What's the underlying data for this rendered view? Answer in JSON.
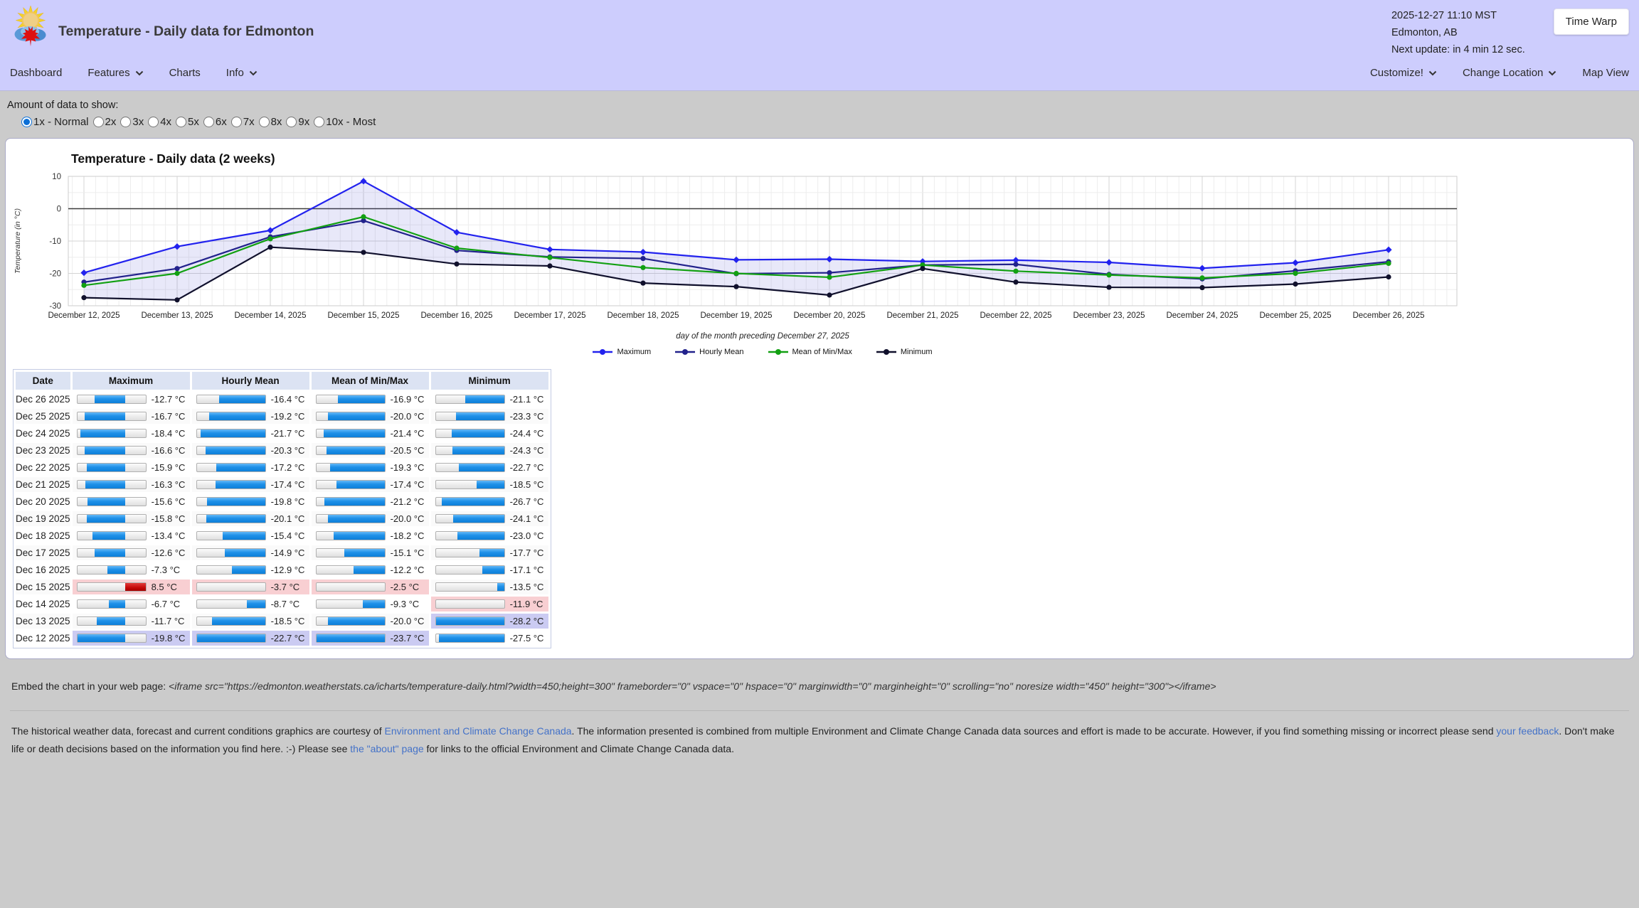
{
  "header": {
    "title": "Temperature - Daily data for Edmonton",
    "datetime": "2025-12-27 11:10 MST",
    "location": "Edmonton, AB",
    "next_update": "Next update: in 4 min 12 sec.",
    "time_warp_label": "Time Warp"
  },
  "nav": {
    "left": [
      {
        "label": "Dashboard",
        "dropdown": false
      },
      {
        "label": "Features",
        "dropdown": true
      },
      {
        "label": "Charts",
        "dropdown": false
      },
      {
        "label": "Info",
        "dropdown": true
      }
    ],
    "right": [
      {
        "label": "Customize!",
        "dropdown": true
      },
      {
        "label": "Change Location",
        "dropdown": true
      },
      {
        "label": "Map View",
        "dropdown": false
      }
    ]
  },
  "data_amount": {
    "label": "Amount of data to show:",
    "options": [
      {
        "label": "1x - Normal",
        "selected": true
      },
      {
        "label": "2x",
        "selected": false
      },
      {
        "label": "3x",
        "selected": false
      },
      {
        "label": "4x",
        "selected": false
      },
      {
        "label": "5x",
        "selected": false
      },
      {
        "label": "6x",
        "selected": false
      },
      {
        "label": "7x",
        "selected": false
      },
      {
        "label": "8x",
        "selected": false
      },
      {
        "label": "9x",
        "selected": false
      },
      {
        "label": "10x - Most",
        "selected": false
      }
    ]
  },
  "chart_data": {
    "type": "line",
    "title": "Temperature - Daily data (2 weeks)",
    "ylabel": "Temperature (in °C)",
    "xlabel": "day of the month preceding December 27, 2025",
    "ylim": [
      -30,
      10
    ],
    "yticks": [
      10,
      0,
      -10,
      -20,
      -30
    ],
    "grid": true,
    "legend_position": "bottom",
    "categories": [
      "December 12, 2025",
      "December 13, 2025",
      "December 14, 2025",
      "December 15, 2025",
      "December 16, 2025",
      "December 17, 2025",
      "December 18, 2025",
      "December 19, 2025",
      "December 20, 2025",
      "December 21, 2025",
      "December 22, 2025",
      "December 23, 2025",
      "December 24, 2025",
      "December 25, 2025",
      "December 26, 2025"
    ],
    "series": [
      {
        "name": "Maximum",
        "color": "#2222ee",
        "values": [
          -19.8,
          -11.7,
          -6.7,
          8.5,
          -7.3,
          -12.6,
          -13.4,
          -15.8,
          -15.6,
          -16.3,
          -15.9,
          -16.6,
          -18.4,
          -16.7,
          -12.7
        ]
      },
      {
        "name": "Hourly Mean",
        "color": "#22228c",
        "values": [
          -22.7,
          -18.5,
          -8.7,
          -3.7,
          -12.9,
          -14.9,
          -15.4,
          -20.1,
          -19.8,
          -17.4,
          -17.2,
          -20.3,
          -21.7,
          -19.2,
          -16.4
        ]
      },
      {
        "name": "Mean of Min/Max",
        "color": "#12a012",
        "values": [
          -23.7,
          -20.0,
          -9.3,
          -2.5,
          -12.2,
          -15.1,
          -18.2,
          -20.0,
          -21.2,
          -17.4,
          -19.3,
          -20.5,
          -21.4,
          -20.0,
          -16.9
        ]
      },
      {
        "name": "Minimum",
        "color": "#10102c",
        "values": [
          -27.5,
          -28.2,
          -11.9,
          -13.5,
          -17.1,
          -17.7,
          -23.0,
          -24.1,
          -26.7,
          -18.5,
          -22.7,
          -24.3,
          -24.4,
          -23.3,
          -21.1
        ]
      }
    ],
    "fill_between": {
      "upper": "Maximum",
      "lower": "Minimum",
      "color": "rgba(80,80,210,0.13)"
    }
  },
  "table": {
    "headers": [
      "Date",
      "Maximum",
      "Hourly Mean",
      "Mean of Min/Max",
      "Minimum"
    ],
    "unit": "°C",
    "bar_color_negative": "#1e90e8",
    "bar_color_positive": "#c40808",
    "record_warm_bg": "#f8cfd2",
    "record_cold_bg": "#cbcbf2",
    "rows": [
      {
        "date": "Dec 26 2025",
        "values": [
          -12.7,
          -16.4,
          -16.9,
          -21.1
        ]
      },
      {
        "date": "Dec 25 2025",
        "values": [
          -16.7,
          -19.2,
          -20.0,
          -23.3
        ]
      },
      {
        "date": "Dec 24 2025",
        "values": [
          -18.4,
          -21.7,
          -21.4,
          -24.4
        ]
      },
      {
        "date": "Dec 23 2025",
        "values": [
          -16.6,
          -20.3,
          -20.5,
          -24.3
        ]
      },
      {
        "date": "Dec 22 2025",
        "values": [
          -15.9,
          -17.2,
          -19.3,
          -22.7
        ]
      },
      {
        "date": "Dec 21 2025",
        "values": [
          -16.3,
          -17.4,
          -17.4,
          -18.5
        ]
      },
      {
        "date": "Dec 20 2025",
        "values": [
          -15.6,
          -19.8,
          -21.2,
          -26.7
        ]
      },
      {
        "date": "Dec 19 2025",
        "values": [
          -15.8,
          -20.1,
          -20.0,
          -24.1
        ]
      },
      {
        "date": "Dec 18 2025",
        "values": [
          -13.4,
          -15.4,
          -18.2,
          -23.0
        ]
      },
      {
        "date": "Dec 17 2025",
        "values": [
          -12.6,
          -14.9,
          -15.1,
          -17.7
        ]
      },
      {
        "date": "Dec 16 2025",
        "values": [
          -7.3,
          -12.9,
          -12.2,
          -17.1
        ]
      },
      {
        "date": "Dec 15 2025",
        "values": [
          8.5,
          -3.7,
          -2.5,
          -13.5
        ]
      },
      {
        "date": "Dec 14 2025",
        "values": [
          -6.7,
          -8.7,
          -9.3,
          -11.9
        ]
      },
      {
        "date": "Dec 13 2025",
        "values": [
          -11.7,
          -18.5,
          -20.0,
          -28.2
        ]
      },
      {
        "date": "Dec 12 2025",
        "values": [
          -19.8,
          -22.7,
          -23.7,
          -27.5
        ]
      }
    ]
  },
  "embed": {
    "prefix": "Embed the chart in your web page: ",
    "code": "<iframe src=\"https://edmonton.weatherstats.ca/icharts/temperature-daily.html?width=450;height=300\" frameborder=\"0\" vspace=\"0\" hspace=\"0\" marginwidth=\"0\" marginheight=\"0\" scrolling=\"no\" noresize width=\"450\" height=\"300\"></iframe>"
  },
  "footer": {
    "segments": [
      {
        "text": "The historical weather data, forecast and current conditions graphics are courtesy of ",
        "link": false
      },
      {
        "text": "Environment and Climate Change Canada",
        "link": true
      },
      {
        "text": ". The information presented is combined from multiple Environment and Climate Change Canada data sources and effort is made to be accurate. However, if you find something missing or incorrect please send ",
        "link": false
      },
      {
        "text": "your feedback",
        "link": true
      },
      {
        "text": ". Don't make life or death decisions based on the information you find here. :-) Please see ",
        "link": false
      },
      {
        "text": "the \"about\" page",
        "link": true
      },
      {
        "text": " for links to the official Environment and Climate Change Canada data.",
        "link": false
      }
    ]
  }
}
